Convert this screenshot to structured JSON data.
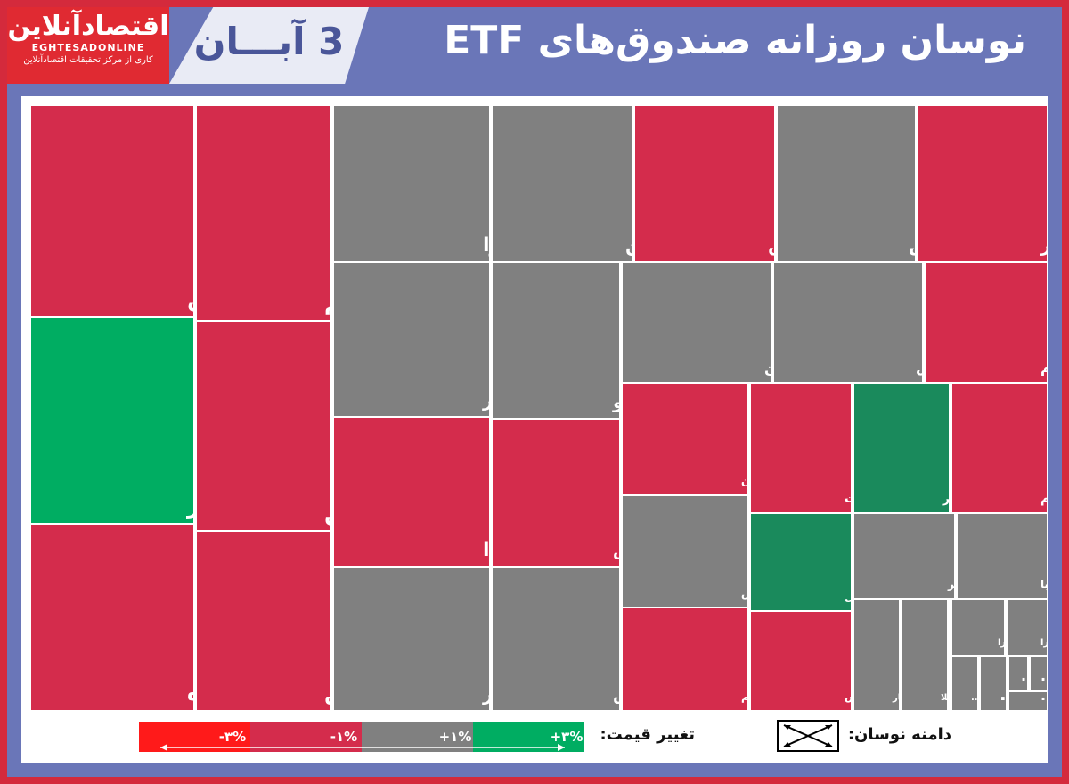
{
  "header": {
    "title": "نوسان روزانه صندوق‌های ETF",
    "date": "3 آبـــان",
    "logo": {
      "name": "اقتصادآنلاین",
      "latin": "EGHTESADONLINE",
      "tagline": "کاری از مرکز تحقیقات اقتصادآنلاین"
    }
  },
  "colors": {
    "negative": "#d42c4c",
    "neutral": "#808080",
    "positive": "#00ad62",
    "positive_mild": "#1a8a5c",
    "strong_negative": "#ff1a1a"
  },
  "legend": {
    "price_change_label": "تغییر قیمت:",
    "range_label": "دامنه نوسان:",
    "scale": [
      {
        "label": "-۳%",
        "color": "#ff1a1a"
      },
      {
        "label": "-۱%",
        "color": "#d42c4c"
      },
      {
        "label": "+۱%",
        "color": "#808080"
      },
      {
        "label": "+۳%",
        "color": "#00ad62"
      }
    ]
  },
  "chart_data": {
    "type": "treemap",
    "title": "نوسان روزانه صندوق‌های ETF",
    "cells": [
      {
        "name": "الماس",
        "change": "negative"
      },
      {
        "name": "سحرخیز",
        "change": "positive"
      },
      {
        "name": "فیروزه",
        "change": "negative"
      },
      {
        "name": "دارا یکم",
        "change": "negative"
      },
      {
        "name": "زرین",
        "change": "negative"
      },
      {
        "name": "کاریس",
        "change": "negative"
      },
      {
        "name": "آوا",
        "change": "neutral"
      },
      {
        "name": "نگین",
        "change": "neutral"
      },
      {
        "name": "آساس",
        "change": "negative"
      },
      {
        "name": "پالایش",
        "change": "neutral"
      },
      {
        "name": "بذر",
        "change": "negative"
      },
      {
        "name": "وبازار",
        "change": "neutral"
      },
      {
        "name": "سرو",
        "change": "neutral"
      },
      {
        "name": "صنوین",
        "change": "neutral"
      },
      {
        "name": "آگاس",
        "change": "neutral"
      },
      {
        "name": "ثهام",
        "change": "negative"
      },
      {
        "name": "پادا",
        "change": "negative"
      },
      {
        "name": "اطلس",
        "change": "negative"
      },
      {
        "name": "مدیر",
        "change": "neutral"
      },
      {
        "name": "آتیمس",
        "change": "neutral"
      },
      {
        "name": "کاردان",
        "change": "negative"
      },
      {
        "name": "افق ملت",
        "change": "negative"
      },
      {
        "name": "زر",
        "change": "positive_mild"
      },
      {
        "name": "آسام",
        "change": "negative"
      },
      {
        "name": "ارزش",
        "change": "neutral"
      },
      {
        "name": "نهال",
        "change": "positive_mild"
      },
      {
        "name": "گوهر",
        "change": "neutral"
      },
      {
        "name": "کهربا",
        "change": "neutral"
      },
      {
        "name": "ثروتم",
        "change": "negative"
      },
      {
        "name": "داریوش",
        "change": "negative"
      },
      {
        "name": "عیار",
        "change": "neutral"
      },
      {
        "name": "طلا",
        "change": "neutral"
      },
      {
        "name": "دارا",
        "change": "neutral"
      },
      {
        "name": "فیروزا",
        "change": "neutral"
      },
      {
        "name": "...",
        "change": "neutral"
      },
      {
        "name": "...",
        "change": "neutral"
      },
      {
        "name": "...",
        "change": "neutral"
      },
      {
        "name": "...",
        "change": "neutral"
      },
      {
        "name": "ت...",
        "change": "neutral"
      }
    ]
  }
}
